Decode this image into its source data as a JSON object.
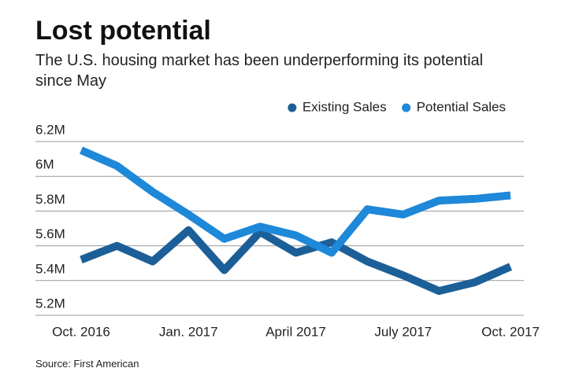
{
  "chart_data": {
    "type": "line",
    "title": "Lost potential",
    "subtitle": "The U.S. housing market has been underperforming its potential since May",
    "source": "Source: First American",
    "categories": [
      "Oct. 2016",
      null,
      null,
      "Jan. 2017",
      null,
      null,
      "April 2017",
      null,
      null,
      "July 2017",
      null,
      null,
      "Oct. 2017"
    ],
    "series": [
      {
        "name": "Existing Sales",
        "color": "#1c5f98",
        "values": [
          5520000,
          5600000,
          5510000,
          5690000,
          5460000,
          5680000,
          5560000,
          5620000,
          5510000,
          5430000,
          5340000,
          5390000,
          5480000
        ]
      },
      {
        "name": "Potential Sales",
        "color": "#1e88d9",
        "values": [
          6150000,
          6060000,
          5910000,
          5780000,
          5640000,
          5710000,
          5660000,
          5560000,
          5810000,
          5780000,
          5860000,
          5870000,
          5890000
        ]
      }
    ],
    "ylim": [
      5200000,
      6200000
    ],
    "yticks": [
      {
        "value": 5200000,
        "label": "5.2M"
      },
      {
        "value": 5400000,
        "label": "5.4M"
      },
      {
        "value": 5600000,
        "label": "5.6M"
      },
      {
        "value": 5800000,
        "label": "5.8M"
      },
      {
        "value": 6000000,
        "label": "6M"
      },
      {
        "value": 6200000,
        "label": "6.2M"
      }
    ],
    "grid": true,
    "legend": "top-right"
  }
}
